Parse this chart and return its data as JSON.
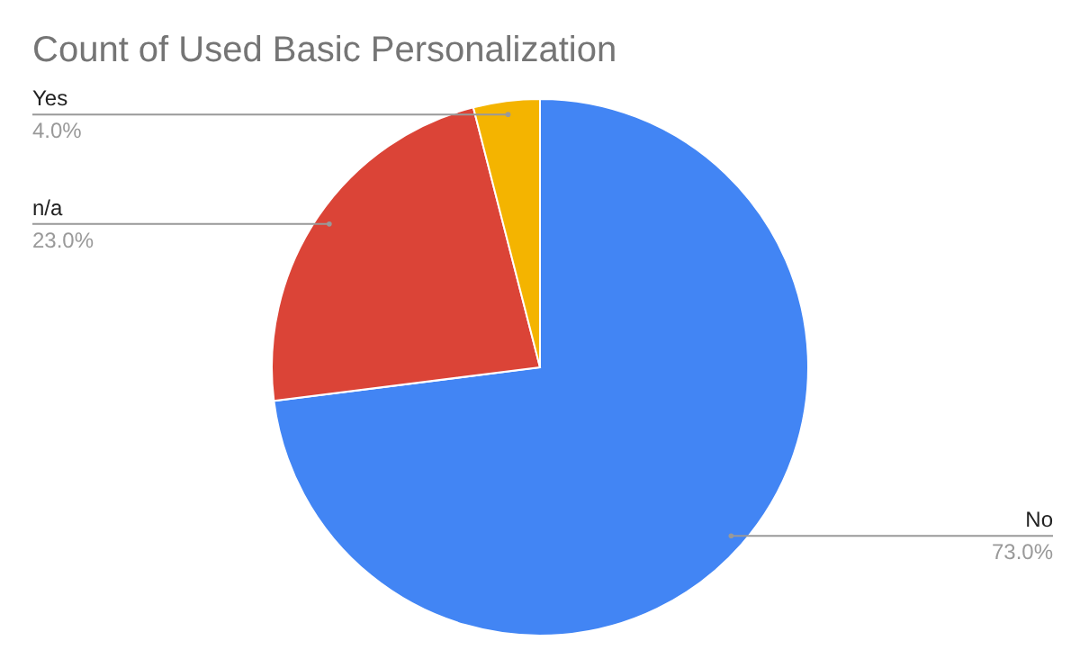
{
  "chart_data": {
    "type": "pie",
    "title": "Count of Used Basic Personalization",
    "categories": [
      "No",
      "n/a",
      "Yes"
    ],
    "values": [
      73,
      23,
      4
    ],
    "colors": [
      "#4285f4",
      "#db4437",
      "#f4b400"
    ],
    "value_labels": [
      "73.0%",
      "23.0%",
      "4.0%"
    ]
  }
}
